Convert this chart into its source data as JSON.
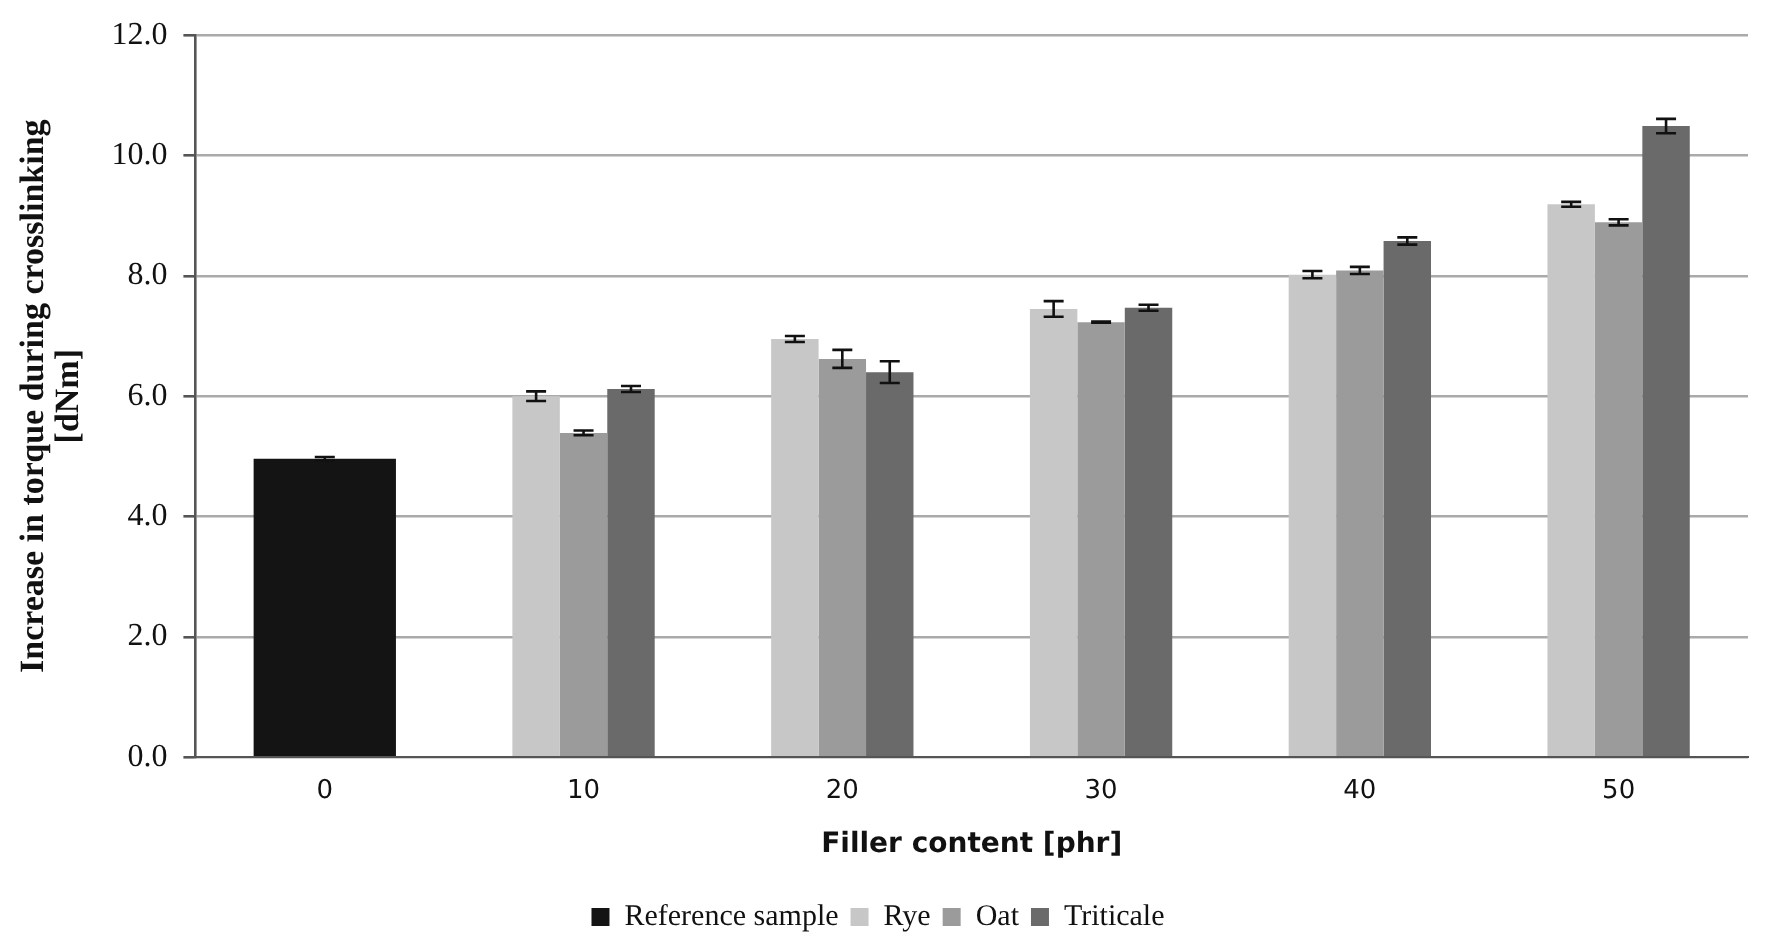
{
  "chart_data": {
    "type": "bar",
    "xlabel": "Filler content [phr]",
    "ylabel": "Increase in torque during crosslinking [dNm]",
    "categories": [
      "0",
      "10",
      "20",
      "30",
      "40",
      "50"
    ],
    "series": [
      {
        "name": "Reference sample",
        "color": "#141414",
        "values": [
          4.96,
          null,
          null,
          null,
          null,
          null
        ],
        "errors": [
          0.03,
          null,
          null,
          null,
          null,
          null
        ]
      },
      {
        "name": "Rye",
        "color": "#c6c7c6",
        "values": [
          null,
          6.0,
          6.95,
          7.45,
          8.02,
          9.19
        ],
        "errors": [
          null,
          0.08,
          0.05,
          0.13,
          0.06,
          0.04
        ]
      },
      {
        "name": "Oat",
        "color": "#9a9b9a",
        "values": [
          null,
          5.39,
          6.62,
          7.23,
          8.09,
          8.89
        ],
        "errors": [
          null,
          0.04,
          0.15,
          0.01,
          0.06,
          0.05
        ]
      },
      {
        "name": "Triticale",
        "color": "#6a6a6a",
        "values": [
          null,
          6.12,
          6.4,
          7.47,
          8.58,
          10.49
        ],
        "errors": [
          null,
          0.05,
          0.18,
          0.05,
          0.06,
          0.12
        ]
      }
    ],
    "ylim": [
      0,
      12
    ],
    "yticks": [
      {
        "value": 0,
        "label": "0.0"
      },
      {
        "value": 2,
        "label": "2.0"
      },
      {
        "value": 4,
        "label": "4.0"
      },
      {
        "value": 6,
        "label": "6.0"
      },
      {
        "value": 8,
        "label": "8.0"
      },
      {
        "value": 10,
        "label": "10.0"
      },
      {
        "value": 12,
        "label": "12.0"
      }
    ],
    "grid": "y",
    "legend": "bottom"
  }
}
